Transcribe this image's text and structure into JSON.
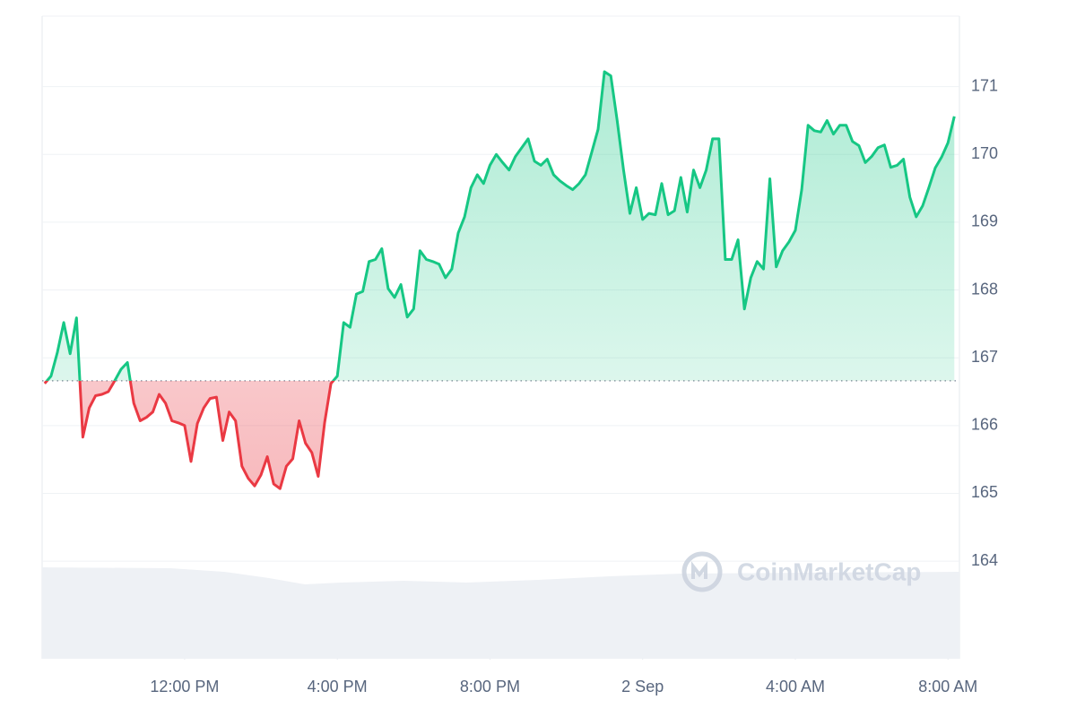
{
  "chart_data": {
    "type": "line",
    "x": [
      500,
      510,
      520,
      530,
      540,
      550,
      560,
      570,
      580,
      590,
      600,
      610,
      620,
      630,
      640,
      650,
      660,
      670,
      680,
      690,
      700,
      710,
      720,
      730,
      740,
      750,
      760,
      770,
      780,
      790,
      800,
      810,
      820,
      830,
      840,
      850,
      860,
      870,
      880,
      890,
      900,
      910,
      920,
      930,
      940,
      950,
      960,
      970,
      980,
      990,
      1000,
      1010,
      1020,
      1030,
      1040,
      1050,
      1060,
      1070,
      1080,
      1090,
      1100,
      1110,
      1120,
      1130,
      1140,
      1150,
      1160,
      1170,
      1180,
      1190,
      1200,
      1210,
      1220,
      1230,
      1240,
      1250,
      1260,
      1270,
      1280,
      1290,
      1300,
      1310,
      1320,
      1330,
      1340,
      1350,
      1360,
      1370,
      1380,
      1390,
      1400,
      1410,
      1420,
      1430,
      1440,
      1450,
      1460,
      1470,
      1480,
      1490,
      1500,
      1510,
      1520,
      1530,
      1540,
      1550,
      1560,
      1570,
      1580,
      1590,
      1600,
      1610,
      1620,
      1630,
      1640,
      1650,
      1660,
      1670,
      1680,
      1690,
      1700,
      1710,
      1720,
      1730,
      1740,
      1750,
      1760,
      1770,
      1780,
      1790,
      1800,
      1810,
      1820,
      1830,
      1840,
      1850,
      1860,
      1870,
      1880,
      1890,
      1900,
      1910,
      1920,
      1930
    ],
    "xlim": [
      496,
      1938
    ],
    "xticks": [
      {
        "value": 720,
        "label": "12:00 PM"
      },
      {
        "value": 960,
        "label": "4:00 PM"
      },
      {
        "value": 1200,
        "label": "8:00 PM"
      },
      {
        "value": 1440,
        "label": "2 Sep"
      },
      {
        "value": 1680,
        "label": "4:00 AM"
      },
      {
        "value": 1920,
        "label": "8:00 AM"
      }
    ],
    "ylim": [
      162.56,
      172.04
    ],
    "yticks": [
      164,
      165,
      166,
      167,
      168,
      169,
      170,
      171
    ],
    "baseline": 166.66,
    "grid": true,
    "watermark": "CoinMarketCap",
    "series": [
      {
        "color": "#16c784",
        "down_color": "#ea3943",
        "values": [
          166.62,
          166.73,
          167.08,
          167.52,
          167.06,
          167.59,
          165.83,
          166.26,
          166.44,
          166.46,
          166.5,
          166.66,
          166.83,
          166.93,
          166.33,
          166.07,
          166.12,
          166.2,
          166.46,
          166.33,
          166.07,
          166.04,
          166.0,
          165.47,
          166.03,
          166.26,
          166.4,
          166.42,
          165.78,
          166.2,
          166.07,
          165.4,
          165.22,
          165.11,
          165.27,
          165.54,
          165.14,
          165.07,
          165.4,
          165.51,
          166.07,
          165.74,
          165.6,
          165.25,
          166.04,
          166.62,
          166.73,
          167.52,
          167.45,
          167.94,
          167.98,
          168.42,
          168.45,
          168.61,
          168.02,
          167.89,
          168.08,
          167.6,
          167.72,
          168.58,
          168.45,
          168.42,
          168.38,
          168.18,
          168.31,
          168.84,
          169.08,
          169.51,
          169.7,
          169.57,
          169.84,
          170.0,
          169.88,
          169.77,
          169.97,
          170.1,
          170.23,
          169.9,
          169.84,
          169.93,
          169.7,
          169.61,
          169.54,
          169.48,
          169.57,
          169.7,
          170.03,
          170.37,
          171.22,
          171.16,
          170.5,
          169.77,
          169.13,
          169.51,
          169.04,
          169.13,
          169.11,
          169.57,
          169.11,
          169.17,
          169.66,
          169.15,
          169.77,
          169.51,
          169.77,
          170.23,
          170.23,
          168.45,
          168.45,
          168.74,
          167.72,
          168.18,
          168.42,
          168.31,
          169.64,
          168.34,
          168.58,
          168.71,
          168.88,
          169.48,
          170.43,
          170.35,
          170.33,
          170.5,
          170.3,
          170.43,
          170.43,
          170.19,
          170.13,
          169.88,
          169.97,
          170.1,
          170.14,
          169.81,
          169.84,
          169.93,
          169.37,
          169.08,
          169.24,
          169.51,
          169.8,
          169.96,
          170.17,
          170.56
        ]
      }
    ]
  }
}
